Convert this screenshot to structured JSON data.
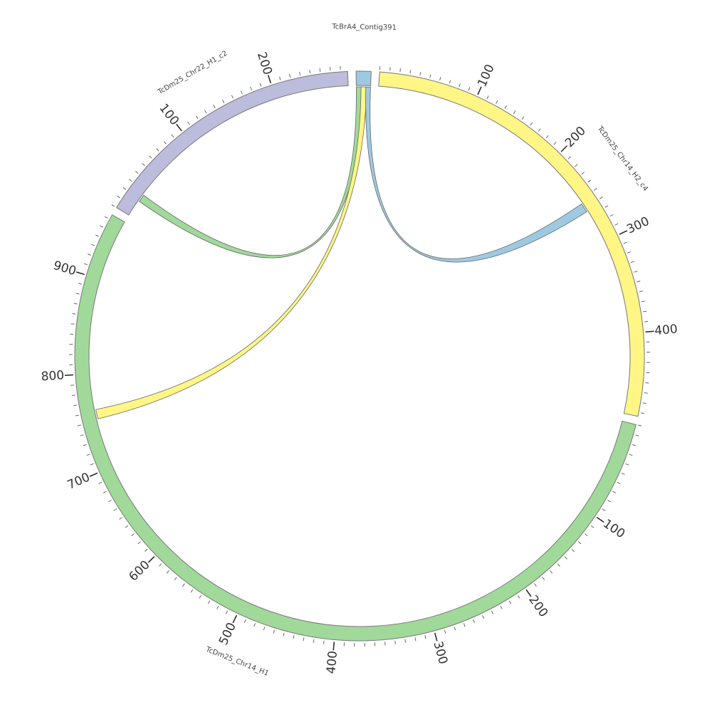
{
  "chart_data": {
    "type": "chord",
    "minor_tick_step": 10,
    "segments": [
      {
        "name": "TcBrA4_Contig391",
        "length": 15,
        "color": "#9ecae1",
        "ticks": []
      },
      {
        "name": "TcDm25_Chr14_H2_c4",
        "length": 484,
        "color": "#fff685",
        "ticks": [
          100,
          200,
          300,
          400
        ]
      },
      {
        "name": "TcDm25_Chr14_H1",
        "length": 965,
        "color": "#a1d99b",
        "ticks": [
          100,
          200,
          300,
          400,
          500,
          600,
          700,
          800,
          900
        ]
      },
      {
        "name": "TcDm25_Chr22_H1_c2",
        "length": 277,
        "color": "#bcbddc",
        "ticks": [
          100,
          200
        ]
      }
    ],
    "links": [
      {
        "source": "TcBrA4_Contig391",
        "source_range": [
          0,
          6
        ],
        "target": "TcDm25_Chr22_H1_c2",
        "target_range": [
          18,
          26
        ],
        "color": "#a1d99b"
      },
      {
        "source": "TcBrA4_Contig391",
        "source_range": [
          5,
          11
        ],
        "target": "TcDm25_Chr14_H1",
        "target_range": [
          752,
          762
        ],
        "color": "#fff685"
      },
      {
        "source": "TcBrA4_Contig391",
        "source_range": [
          10,
          15
        ],
        "target": "TcDm25_Chr14_H2_c4",
        "target_range": [
          254,
          264
        ],
        "color": "#9ecae1"
      }
    ]
  }
}
